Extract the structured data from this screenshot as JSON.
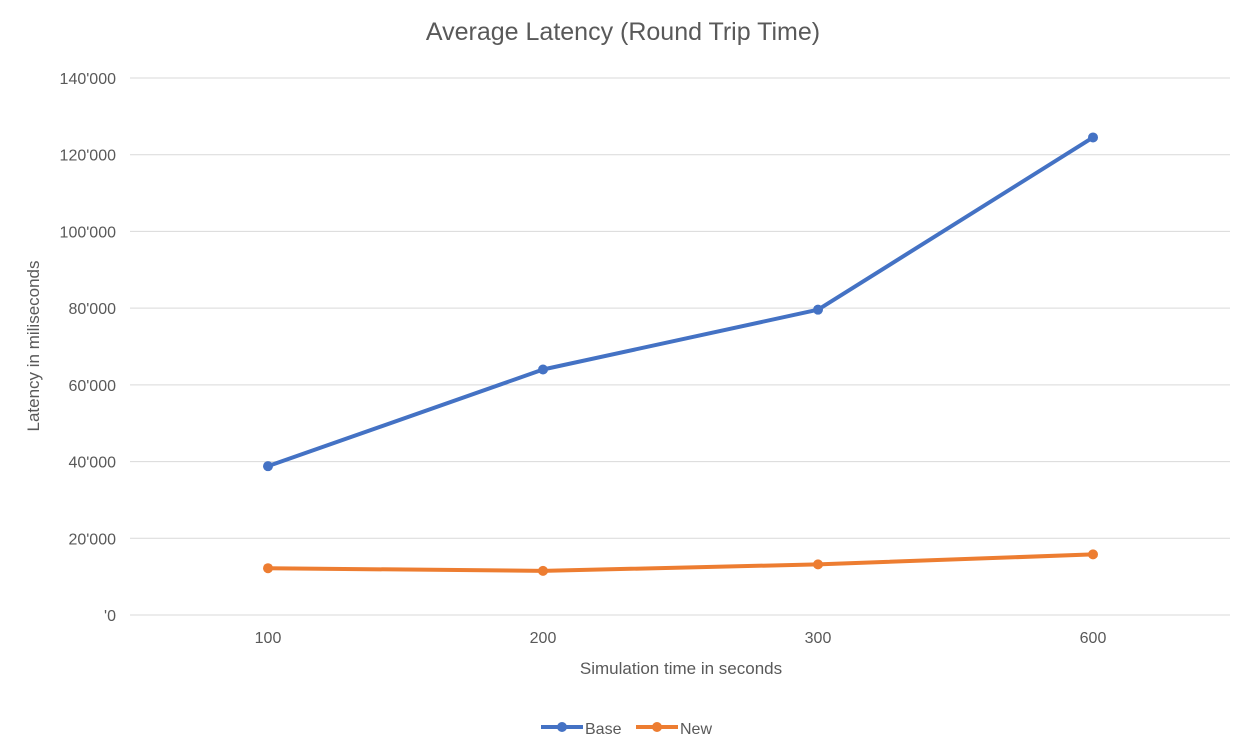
{
  "chart_data": {
    "type": "line",
    "title": "Average Latency (Round Trip Time)",
    "xlabel": "Simulation time in seconds",
    "ylabel": "Latency in miliseconds",
    "categories": [
      "100",
      "200",
      "300",
      "600"
    ],
    "ylim": [
      0,
      140000
    ],
    "yticks": [
      0,
      20000,
      40000,
      60000,
      80000,
      100000,
      120000,
      140000
    ],
    "ytick_labels": [
      "'0",
      "20'000",
      "40'000",
      "60'000",
      "80'000",
      "100'000",
      "120'000",
      "140'000"
    ],
    "grid": true,
    "legend_position": "bottom",
    "series": [
      {
        "name": "Base",
        "color": "#4472C4",
        "values": [
          38800,
          64000,
          79600,
          124500
        ]
      },
      {
        "name": "New",
        "color": "#ED7D31",
        "values": [
          12200,
          11500,
          13200,
          15800
        ]
      }
    ]
  }
}
